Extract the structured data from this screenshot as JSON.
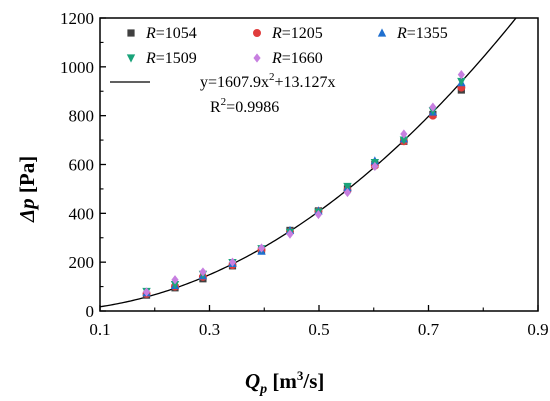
{
  "chart_data": {
    "type": "scatter",
    "xlabel_main": "Q",
    "xlabel_sub": "p",
    "xlabel_unit_pre": " [m",
    "xlabel_unit_sup": "3",
    "xlabel_unit_post": "/s]",
    "ylabel_main": "Δp",
    "ylabel_unit": " [Pa]",
    "xlim": [
      0.1,
      0.9
    ],
    "ylim": [
      0,
      1200
    ],
    "xticks": [
      0.1,
      0.3,
      0.5,
      0.7,
      0.9
    ],
    "xtick_labels": [
      "0.1",
      "0.3",
      "0.5",
      "0.7",
      "0.9"
    ],
    "yticks": [
      0,
      200,
      400,
      600,
      800,
      1000,
      1200
    ],
    "ytick_labels": [
      "0",
      "200",
      "400",
      "600",
      "800",
      "1000",
      "1200"
    ],
    "series": [
      {
        "name_var": "R",
        "name_val": "=1054",
        "color": "#404040",
        "marker": "square",
        "x": [
          0.185,
          0.237,
          0.288,
          0.342,
          0.395,
          0.447,
          0.499,
          0.552,
          0.602,
          0.655,
          0.708,
          0.76
        ],
        "y": [
          65,
          95,
          132,
          185,
          248,
          330,
          410,
          500,
          600,
          695,
          805,
          905
        ]
      },
      {
        "name_var": "R",
        "name_val": "=1205",
        "color": "#e03c3c",
        "marker": "circle",
        "x": [
          0.185,
          0.237,
          0.288,
          0.342,
          0.395,
          0.447,
          0.499,
          0.552,
          0.602,
          0.655,
          0.708,
          0.76
        ],
        "y": [
          70,
          100,
          140,
          188,
          250,
          325,
          408,
          495,
          595,
          695,
          800,
          915
        ]
      },
      {
        "name_var": "R",
        "name_val": "=1355",
        "color": "#1f6fcf",
        "marker": "triangle-up",
        "x": [
          0.185,
          0.237,
          0.288,
          0.342,
          0.395,
          0.447,
          0.499,
          0.552,
          0.602,
          0.655,
          0.708,
          0.76
        ],
        "y": [
          75,
          105,
          145,
          195,
          245,
          330,
          410,
          505,
          615,
          705,
          815,
          935
        ]
      },
      {
        "name_var": "R",
        "name_val": "=1509",
        "color": "#1aa37a",
        "marker": "triangle-down",
        "x": [
          0.185,
          0.237,
          0.288,
          0.342,
          0.395,
          0.447,
          0.499,
          0.552,
          0.602,
          0.655,
          0.708,
          0.76
        ],
        "y": [
          80,
          108,
          150,
          198,
          255,
          322,
          405,
          510,
          608,
          700,
          820,
          940
        ]
      },
      {
        "name_var": "R",
        "name_val": "=1660",
        "color": "#c77fe0",
        "marker": "diamond",
        "x": [
          0.185,
          0.237,
          0.288,
          0.342,
          0.395,
          0.447,
          0.499,
          0.552,
          0.602,
          0.655,
          0.708,
          0.76
        ],
        "y": [
          78,
          128,
          160,
          200,
          258,
          315,
          395,
          485,
          592,
          725,
          835,
          968
        ]
      }
    ],
    "fit": {
      "a": 1607.9,
      "b": 13.127,
      "equation_pre": "y=1607.9x",
      "equation_sup": "2",
      "equation_post": "+13.127x",
      "r2_pre": "R",
      "r2_sup": "2",
      "r2_post": "=0.9986"
    },
    "legend_position": "top-inside"
  }
}
